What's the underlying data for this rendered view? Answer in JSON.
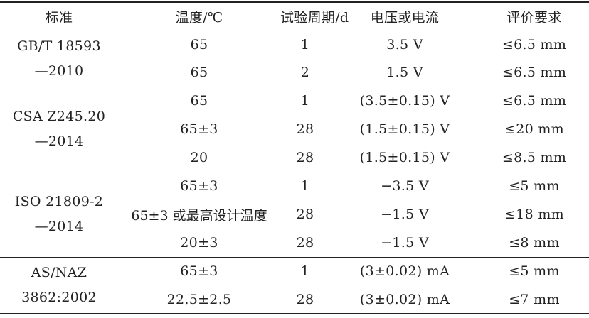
{
  "table": {
    "headers": [
      "标准",
      "温度/℃",
      "试验周期/d",
      "电压或电流",
      "评价要求"
    ],
    "groups": [
      {
        "standard": [
          "GB/T 18593",
          "—2010"
        ],
        "rows": [
          {
            "temp": "65",
            "period": "1",
            "voltage": "3.5 V",
            "criterion": "≤6.5 mm"
          },
          {
            "temp": "65",
            "period": "2",
            "voltage": "1.5 V",
            "criterion": "≤6.5 mm"
          }
        ]
      },
      {
        "standard": [
          "CSA Z245.20",
          "—2014"
        ],
        "rows": [
          {
            "temp": "65",
            "period": "1",
            "voltage": "(3.5±0.15) V",
            "criterion": "≤6.5 mm"
          },
          {
            "temp": "65±3",
            "period": "28",
            "voltage": "(1.5±0.15) V",
            "criterion": "≤20 mm"
          },
          {
            "temp": "20",
            "period": "28",
            "voltage": "(1.5±0.15) V",
            "criterion": "≤8.5 mm"
          }
        ]
      },
      {
        "standard": [
          "ISO 21809-2",
          "—2014"
        ],
        "rows": [
          {
            "temp": "65±3",
            "period": "1",
            "voltage": "−3.5 V",
            "criterion": "≤5 mm"
          },
          {
            "temp": "65±3 或最高设计温度",
            "period": "28",
            "voltage": "−1.5 V",
            "criterion": "≤18 mm"
          },
          {
            "temp": "20±3",
            "period": "28",
            "voltage": "−1.5 V",
            "criterion": "≤8 mm"
          }
        ]
      },
      {
        "standard": [
          "AS/NAZ",
          "3862:2002"
        ],
        "rows": [
          {
            "temp": "65±3",
            "period": "1",
            "voltage": "(3±0.02) mA",
            "criterion": "≤5 mm"
          },
          {
            "temp": "22.5±2.5",
            "period": "28",
            "voltage": "(3±0.02) mA",
            "criterion": "≤7 mm"
          }
        ]
      }
    ]
  }
}
